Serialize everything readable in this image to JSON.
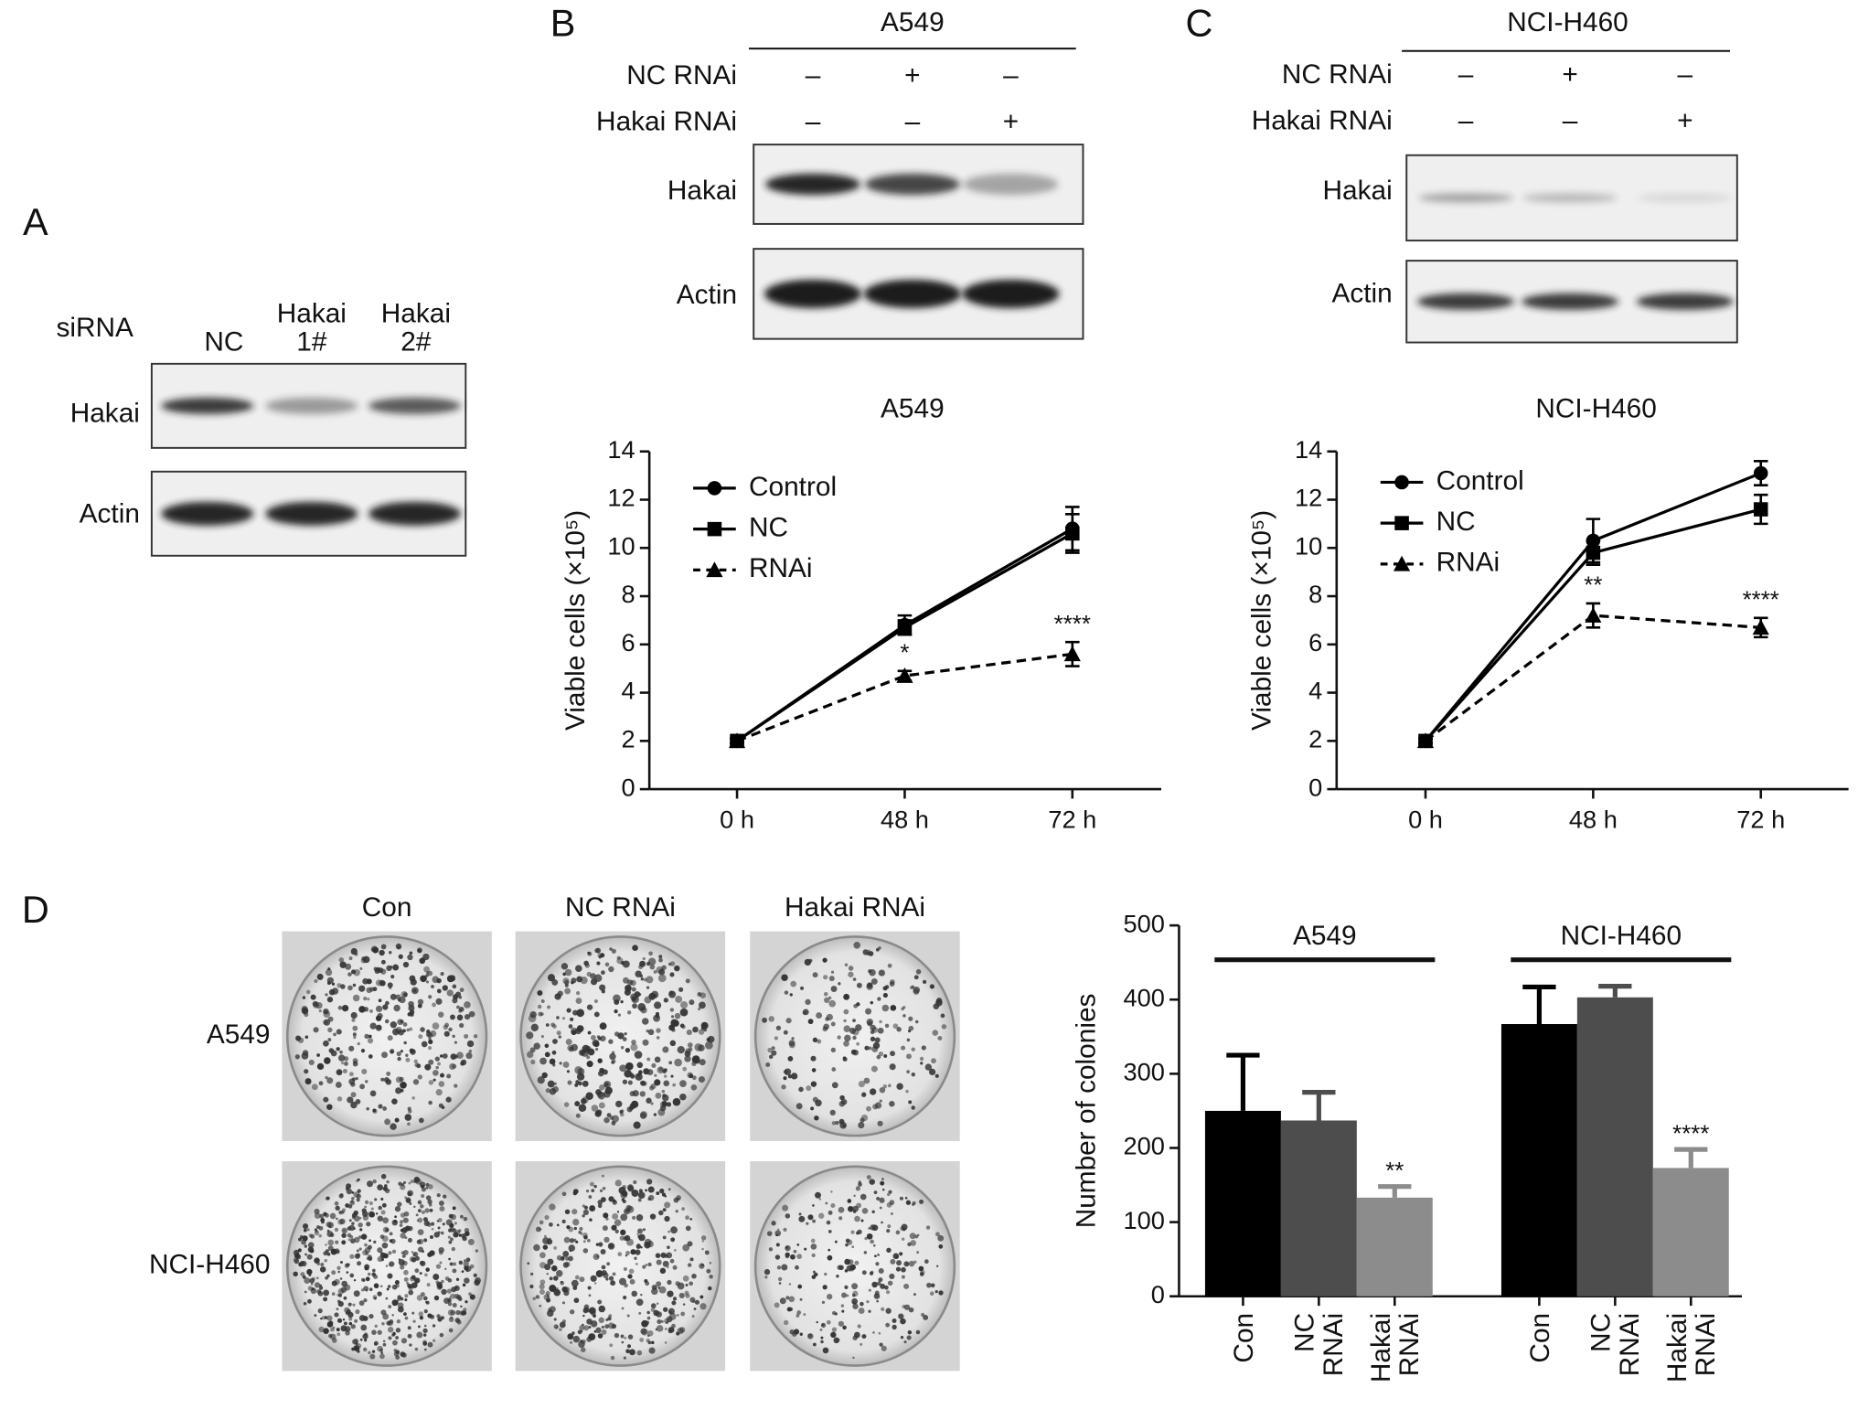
{
  "panel_a": {
    "label": "A",
    "row_title": "siRNA",
    "lanes": [
      "NC",
      "Hakai 1#",
      "Hakai 2#"
    ],
    "blots": [
      "Hakai",
      "Actin"
    ]
  },
  "panel_b": {
    "label": "B",
    "cell_line": "A549",
    "conditions": [
      {
        "name": "NC RNAi",
        "signs": [
          "–",
          "+",
          "–"
        ]
      },
      {
        "name": "Hakai RNAi",
        "signs": [
          "–",
          "–",
          "+"
        ]
      }
    ],
    "blots": [
      "Hakai",
      "Actin"
    ]
  },
  "panel_c": {
    "label": "C",
    "cell_line": "NCI-H460",
    "conditions": [
      {
        "name": "NC RNAi",
        "signs": [
          "–",
          "+",
          "–"
        ]
      },
      {
        "name": "Hakai RNAi",
        "signs": [
          "–",
          "–",
          "+"
        ]
      }
    ],
    "blots": [
      "Hakai",
      "Actin"
    ]
  },
  "panel_d": {
    "label": "D",
    "columns": [
      "Con",
      "NC RNAi",
      "Hakai RNAi"
    ],
    "rows": [
      "A549",
      "NCI-H460"
    ]
  },
  "chart_data": [
    {
      "type": "line",
      "title": "A549",
      "ylabel": "Viable cells (×10⁵)",
      "x": [
        "0 h",
        "48 h",
        "72 h"
      ],
      "ylim": [
        0,
        14
      ],
      "yticks": [
        0,
        2,
        4,
        6,
        8,
        10,
        12,
        14
      ],
      "legend": "upper left",
      "series": [
        {
          "name": "Control",
          "color": "#000000",
          "marker": "circle",
          "dashed": false,
          "values": [
            2,
            6.8,
            10.8
          ],
          "errors": [
            0.1,
            0.4,
            0.9
          ]
        },
        {
          "name": "NC",
          "color": "#000000",
          "marker": "square",
          "dashed": false,
          "values": [
            2,
            6.7,
            10.6
          ],
          "errors": [
            0.1,
            0.3,
            0.8
          ]
        },
        {
          "name": "RNAi",
          "color": "#000000",
          "marker": "triangle",
          "dashed": true,
          "values": [
            2,
            4.7,
            5.6
          ],
          "errors": [
            0.1,
            0.2,
            0.5
          ]
        }
      ],
      "annotations": [
        null,
        "*",
        "****"
      ]
    },
    {
      "type": "line",
      "title": "NCI-H460",
      "ylabel": "Viable cells (×10⁵)",
      "x": [
        "0 h",
        "48 h",
        "72 h"
      ],
      "ylim": [
        0,
        14
      ],
      "yticks": [
        0,
        2,
        4,
        6,
        8,
        10,
        12,
        14
      ],
      "legend": "upper left",
      "series": [
        {
          "name": "Control",
          "color": "#000000",
          "marker": "circle",
          "dashed": false,
          "values": [
            2,
            10.3,
            13.1
          ],
          "errors": [
            0.1,
            0.9,
            0.5
          ]
        },
        {
          "name": "NC",
          "color": "#000000",
          "marker": "square",
          "dashed": false,
          "values": [
            2,
            9.8,
            11.6
          ],
          "errors": [
            0.1,
            0.5,
            0.6
          ]
        },
        {
          "name": "RNAi",
          "color": "#000000",
          "marker": "triangle",
          "dashed": true,
          "values": [
            2,
            7.2,
            6.7
          ],
          "errors": [
            0.1,
            0.5,
            0.4
          ]
        }
      ],
      "annotations": [
        null,
        "**",
        "****"
      ]
    },
    {
      "type": "bar",
      "ylabel": "Number of colonies",
      "ylim": [
        0,
        500
      ],
      "yticks": [
        0,
        100,
        200,
        300,
        400,
        500
      ],
      "categories": [
        "Con",
        "NC RNAi",
        "Hakai RNAi"
      ],
      "colors": [
        "#000000",
        "#4d4d4d",
        "#8c8c8c"
      ],
      "groups": [
        {
          "name": "A549",
          "values": [
            250,
            237,
            133
          ],
          "errors": [
            75,
            38,
            15
          ],
          "annotations": [
            null,
            null,
            "**"
          ]
        },
        {
          "name": "NCI-H460",
          "values": [
            367,
            403,
            173
          ],
          "errors": [
            50,
            15,
            25
          ],
          "annotations": [
            null,
            null,
            "****"
          ]
        }
      ]
    }
  ]
}
